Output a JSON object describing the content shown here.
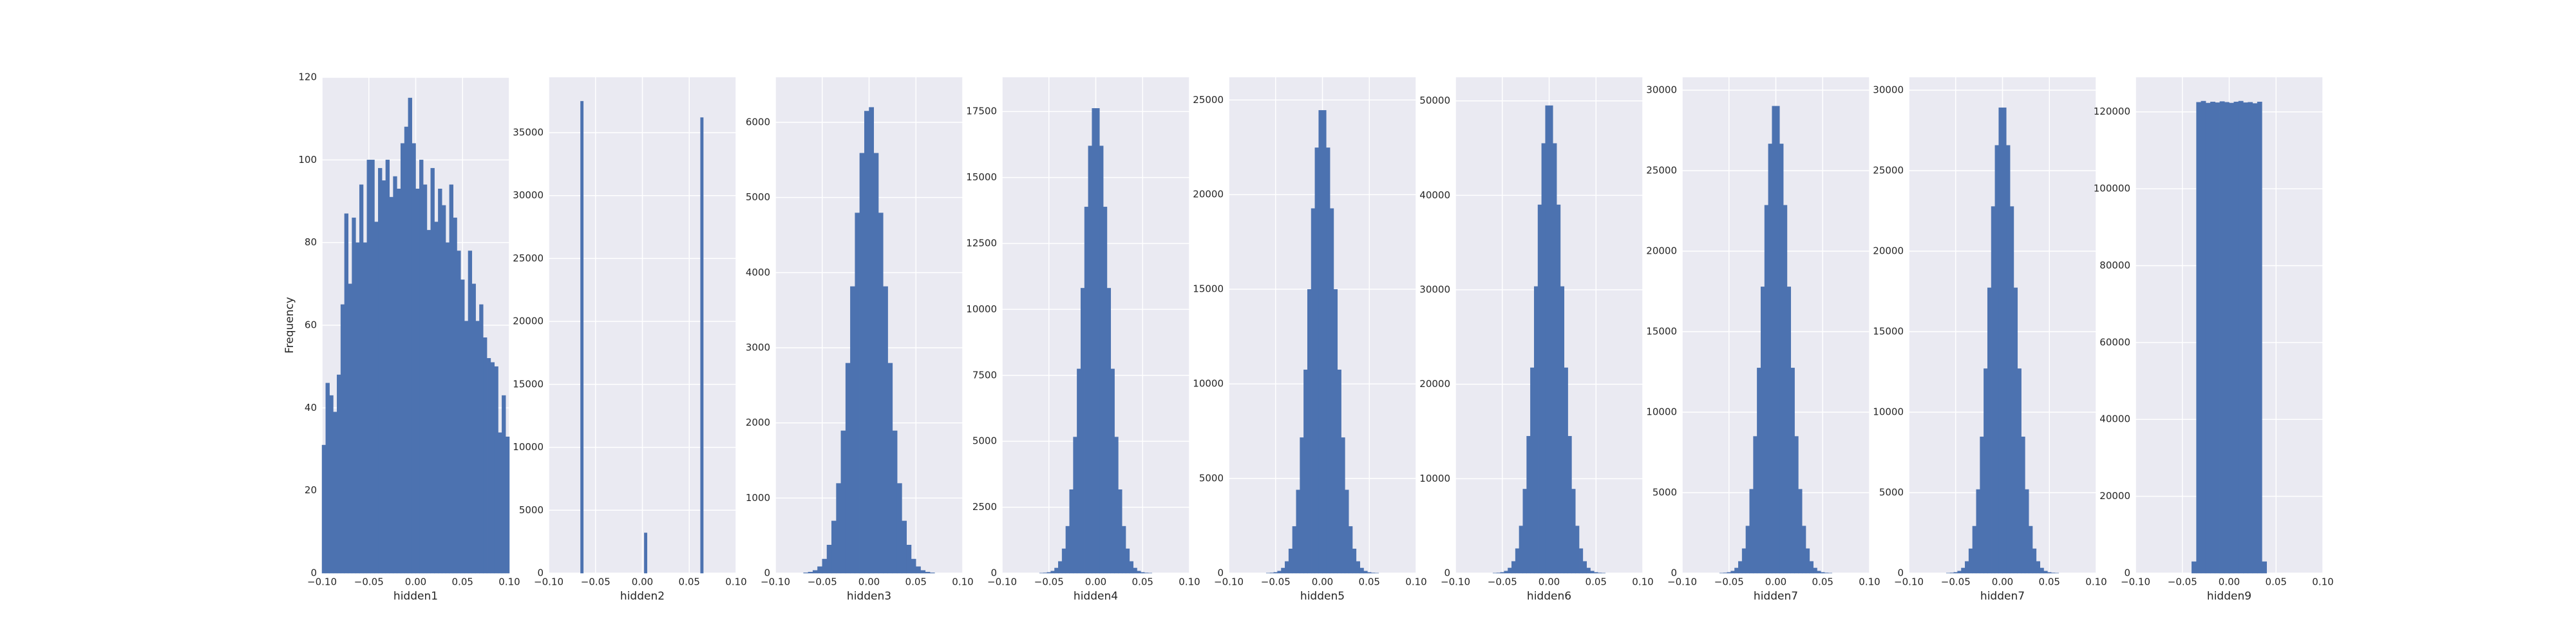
{
  "chart_data": [
    {
      "type": "histogram",
      "xlabel": "hidden1",
      "ylabel": "Frequency",
      "color": "#4c72b0",
      "grid": true,
      "bins": [
        -0.1,
        -0.096,
        -0.092,
        -0.088,
        -0.084,
        -0.08,
        -0.076,
        -0.072,
        -0.068,
        -0.064,
        -0.06,
        -0.056,
        -0.052,
        -0.048,
        -0.044,
        -0.04,
        -0.036,
        -0.032,
        -0.028,
        -0.024,
        -0.02,
        -0.016,
        -0.012,
        -0.008,
        -0.004,
        0,
        0.004,
        0.008,
        0.012,
        0.016,
        0.02,
        0.024,
        0.028,
        0.032,
        0.036,
        0.04,
        0.044,
        0.048,
        0.052,
        0.056,
        0.06,
        0.064,
        0.068,
        0.072,
        0.076,
        0.08,
        0.084,
        0.088,
        0.092,
        0.096,
        0.1
      ],
      "counts": [
        31,
        46,
        43,
        39,
        48,
        65,
        87,
        70,
        86,
        80,
        94,
        80,
        100,
        100,
        85,
        98,
        95,
        100,
        91,
        96,
        93,
        104,
        108,
        115,
        104,
        93,
        100,
        94,
        83,
        98,
        85,
        93,
        89,
        80,
        94,
        86,
        78,
        71,
        61,
        78,
        70,
        61,
        65,
        57,
        52,
        51,
        50,
        34,
        43,
        33
      ],
      "xlim": [
        -0.1,
        0.1
      ],
      "ylim": [
        0,
        120
      ],
      "xticks": [
        {
          "value": -0.1,
          "label": "−0.10"
        },
        {
          "value": -0.05,
          "label": "−0.05"
        },
        {
          "value": 0,
          "label": "0.00"
        },
        {
          "value": 0.05,
          "label": "0.05"
        },
        {
          "value": 0.1,
          "label": "0.10"
        }
      ],
      "yticks": [
        0,
        20,
        40,
        60,
        80,
        100,
        120
      ]
    },
    {
      "type": "histogram",
      "xlabel": "hidden2",
      "color": "#4c72b0",
      "grid": true,
      "bins": [
        -0.066,
        -0.063,
        0.002,
        0.005,
        0.062,
        0.065
      ],
      "counts": [
        37500,
        0,
        3200,
        0,
        36200
      ],
      "xlim": [
        -0.1,
        0.1
      ],
      "ylim": [
        0,
        39400
      ],
      "xticks": [
        {
          "value": -0.1,
          "label": "−0.10"
        },
        {
          "value": -0.05,
          "label": "−0.05"
        },
        {
          "value": 0,
          "label": "0.00"
        },
        {
          "value": 0.05,
          "label": "0.05"
        },
        {
          "value": 0.1,
          "label": "0.10"
        }
      ],
      "yticks": [
        0,
        5000,
        10000,
        15000,
        20000,
        25000,
        30000,
        35000
      ]
    },
    {
      "type": "histogram",
      "xlabel": "hidden3",
      "color": "#4c72b0",
      "grid": true,
      "bins": [
        -0.07,
        -0.065,
        -0.06,
        -0.055,
        -0.05,
        -0.045,
        -0.04,
        -0.035,
        -0.03,
        -0.025,
        -0.02,
        -0.015,
        -0.01,
        -0.005,
        0,
        0.005,
        0.01,
        0.015,
        0.02,
        0.025,
        0.03,
        0.035,
        0.04,
        0.045,
        0.05,
        0.055,
        0.06,
        0.065,
        0.07
      ],
      "counts": [
        5,
        15,
        37,
        87,
        188,
        375,
        695,
        1195,
        1895,
        2795,
        3815,
        4795,
        5590,
        6150,
        6200,
        5590,
        4795,
        3815,
        2795,
        1895,
        1195,
        695,
        375,
        188,
        87,
        37,
        15,
        5
      ],
      "xlim": [
        -0.1,
        0.1
      ],
      "ylim": [
        0,
        6600
      ],
      "xticks": [
        {
          "value": -0.1,
          "label": "−0.10"
        },
        {
          "value": -0.05,
          "label": "−0.05"
        },
        {
          "value": 0,
          "label": "0.00"
        },
        {
          "value": 0.05,
          "label": "0.05"
        },
        {
          "value": 0.1,
          "label": "0.10"
        }
      ],
      "yticks": [
        0,
        1000,
        2000,
        3000,
        4000,
        5000,
        6000
      ]
    },
    {
      "type": "histogram",
      "xlabel": "hidden4",
      "color": "#4c72b0",
      "grid": true,
      "bins": [
        -0.06,
        -0.056,
        -0.052,
        -0.048,
        -0.044,
        -0.04,
        -0.036,
        -0.032,
        -0.028,
        -0.024,
        -0.02,
        -0.016,
        -0.012,
        -0.008,
        -0.004,
        0,
        0.004,
        0.008,
        0.012,
        0.016,
        0.02,
        0.024,
        0.028,
        0.032,
        0.036,
        0.04,
        0.044,
        0.048,
        0.052,
        0.056,
        0.06
      ],
      "counts": [
        4,
        11,
        30,
        80,
        196,
        445,
        926,
        1780,
        3168,
        5162,
        7743,
        10805,
        13884,
        16198,
        17622,
        17622,
        16198,
        13884,
        10805,
        7743,
        5162,
        3168,
        1780,
        926,
        445,
        196,
        80,
        30,
        11,
        4
      ],
      "xlim": [
        -0.1,
        0.1
      ],
      "ylim": [
        0,
        18800
      ],
      "xticks": [
        {
          "value": -0.1,
          "label": "−0.10"
        },
        {
          "value": -0.05,
          "label": "−0.05"
        },
        {
          "value": 0,
          "label": "0.00"
        },
        {
          "value": 0.05,
          "label": "0.05"
        },
        {
          "value": 0.1,
          "label": "0.10"
        }
      ],
      "yticks": [
        0,
        2500,
        5000,
        7500,
        10000,
        12500,
        15000,
        17500
      ]
    },
    {
      "type": "histogram",
      "xlabel": "hidden5",
      "color": "#4c72b0",
      "grid": true,
      "bins": [
        -0.06,
        -0.056,
        -0.052,
        -0.048,
        -0.044,
        -0.04,
        -0.036,
        -0.032,
        -0.028,
        -0.024,
        -0.02,
        -0.016,
        -0.012,
        -0.008,
        -0.004,
        0,
        0.004,
        0.008,
        0.012,
        0.016,
        0.02,
        0.024,
        0.028,
        0.032,
        0.036,
        0.04,
        0.044,
        0.048,
        0.052,
        0.056,
        0.06
      ],
      "counts": [
        5,
        15,
        42,
        111,
        272,
        618,
        1284,
        2470,
        4397,
        7163,
        10745,
        14993,
        19266,
        22477,
        24453,
        24453,
        22477,
        19266,
        14993,
        10745,
        7163,
        4397,
        2470,
        1284,
        618,
        272,
        111,
        42,
        15,
        5
      ],
      "xlim": [
        -0.1,
        0.1
      ],
      "ylim": [
        0,
        26200
      ],
      "xticks": [
        {
          "value": -0.1,
          "label": "−0.10"
        },
        {
          "value": -0.05,
          "label": "−0.05"
        },
        {
          "value": 0,
          "label": "0.00"
        },
        {
          "value": 0.05,
          "label": "0.05"
        },
        {
          "value": 0.1,
          "label": "0.10"
        }
      ],
      "yticks": [
        0,
        5000,
        10000,
        15000,
        20000,
        25000
      ]
    },
    {
      "type": "histogram",
      "xlabel": "hidden6",
      "color": "#4c72b0",
      "grid": true,
      "bins": [
        -0.06,
        -0.056,
        -0.052,
        -0.048,
        -0.044,
        -0.04,
        -0.036,
        -0.032,
        -0.028,
        -0.024,
        -0.02,
        -0.016,
        -0.012,
        -0.008,
        -0.004,
        0,
        0.004,
        0.008,
        0.012,
        0.016,
        0.02,
        0.024,
        0.028,
        0.032,
        0.036,
        0.04,
        0.044,
        0.048,
        0.052,
        0.056,
        0.06
      ],
      "counts": [
        10,
        30,
        85,
        225,
        550,
        1250,
        2600,
        5000,
        8900,
        14500,
        21750,
        30350,
        39000,
        45500,
        49500,
        49500,
        45500,
        39000,
        30350,
        21750,
        14500,
        8900,
        5000,
        2600,
        1250,
        550,
        225,
        85,
        30,
        10
      ],
      "xlim": [
        -0.1,
        0.1
      ],
      "ylim": [
        0,
        52500
      ],
      "xticks": [
        {
          "value": -0.1,
          "label": "−0.10"
        },
        {
          "value": -0.05,
          "label": "−0.05"
        },
        {
          "value": 0,
          "label": "0.00"
        },
        {
          "value": 0.05,
          "label": "0.05"
        },
        {
          "value": 0.1,
          "label": "0.10"
        }
      ],
      "yticks": [
        0,
        10000,
        20000,
        30000,
        40000,
        50000
      ]
    },
    {
      "type": "histogram",
      "xlabel": "hidden7",
      "color": "#4c72b0",
      "grid": true,
      "bins": [
        -0.06,
        -0.056,
        -0.052,
        -0.048,
        -0.044,
        -0.04,
        -0.036,
        -0.032,
        -0.028,
        -0.024,
        -0.02,
        -0.016,
        -0.012,
        -0.008,
        -0.004,
        0,
        0.004,
        0.008,
        0.012,
        0.016,
        0.02,
        0.024,
        0.028,
        0.032,
        0.036,
        0.04,
        0.044,
        0.048,
        0.052,
        0.056,
        0.06
      ],
      "counts": [
        6,
        18,
        50,
        132,
        322,
        733,
        1524,
        2930,
        5215,
        8497,
        12746,
        17785,
        22854,
        26663,
        29007,
        29007,
        26663,
        22854,
        17785,
        12746,
        8497,
        5215,
        2930,
        1524,
        733,
        322,
        132,
        50,
        18,
        6
      ],
      "xlim": [
        -0.1,
        0.1
      ],
      "ylim": [
        0,
        30800
      ],
      "xticks": [
        {
          "value": -0.1,
          "label": "−0.10"
        },
        {
          "value": -0.05,
          "label": "−0.05"
        },
        {
          "value": 0,
          "label": "0.00"
        },
        {
          "value": 0.05,
          "label": "0.05"
        },
        {
          "value": 0.1,
          "label": "0.10"
        }
      ],
      "yticks": [
        0,
        5000,
        10000,
        15000,
        20000,
        25000,
        30000
      ]
    },
    {
      "type": "histogram",
      "xlabel": "hidden7",
      "color": "#4c72b0",
      "grid": true,
      "bins": [
        -0.06,
        -0.056,
        -0.052,
        -0.048,
        -0.044,
        -0.04,
        -0.036,
        -0.032,
        -0.028,
        -0.024,
        -0.02,
        -0.016,
        -0.012,
        -0.008,
        -0.004,
        0,
        0.004,
        0.008,
        0.012,
        0.016,
        0.02,
        0.024,
        0.028,
        0.032,
        0.036,
        0.04,
        0.044,
        0.048,
        0.052,
        0.056,
        0.06
      ],
      "counts": [
        6,
        18,
        50,
        131,
        321,
        730,
        1518,
        2920,
        5198,
        8468,
        12702,
        17724,
        22776,
        26572,
        28908,
        28908,
        26572,
        22776,
        17724,
        12702,
        8468,
        5198,
        2920,
        1518,
        730,
        321,
        131,
        50,
        18,
        6
      ],
      "xlim": [
        -0.1,
        0.1
      ],
      "ylim": [
        0,
        30800
      ],
      "xticks": [
        {
          "value": -0.1,
          "label": "−0.10"
        },
        {
          "value": -0.05,
          "label": "−0.05"
        },
        {
          "value": 0,
          "label": "0.00"
        },
        {
          "value": 0.05,
          "label": "0.05"
        },
        {
          "value": 0.1,
          "label": "0.10"
        }
      ],
      "yticks": [
        0,
        5000,
        10000,
        15000,
        20000,
        25000,
        30000
      ]
    },
    {
      "type": "histogram",
      "xlabel": "hidden9",
      "color": "#4c72b0",
      "grid": true,
      "bins": [
        -0.04,
        -0.035,
        -0.03,
        -0.025,
        -0.02,
        -0.015,
        -0.01,
        -0.005,
        0,
        0.005,
        0.01,
        0.015,
        0.02,
        0.025,
        0.03,
        0.035,
        0.04
      ],
      "counts": [
        3000,
        122500,
        122800,
        122300,
        122600,
        122400,
        122700,
        122500,
        122300,
        122600,
        122800,
        122400,
        122500,
        122200,
        122600,
        3000
      ],
      "xlim": [
        -0.1,
        0.1
      ],
      "ylim": [
        0,
        129000
      ],
      "xticks": [
        {
          "value": -0.1,
          "label": "−0.10"
        },
        {
          "value": -0.05,
          "label": "−0.05"
        },
        {
          "value": 0,
          "label": "0.00"
        },
        {
          "value": 0.05,
          "label": "0.05"
        },
        {
          "value": 0.1,
          "label": "0.10"
        }
      ],
      "yticks": [
        0,
        20000,
        40000,
        60000,
        80000,
        100000,
        120000
      ]
    }
  ]
}
